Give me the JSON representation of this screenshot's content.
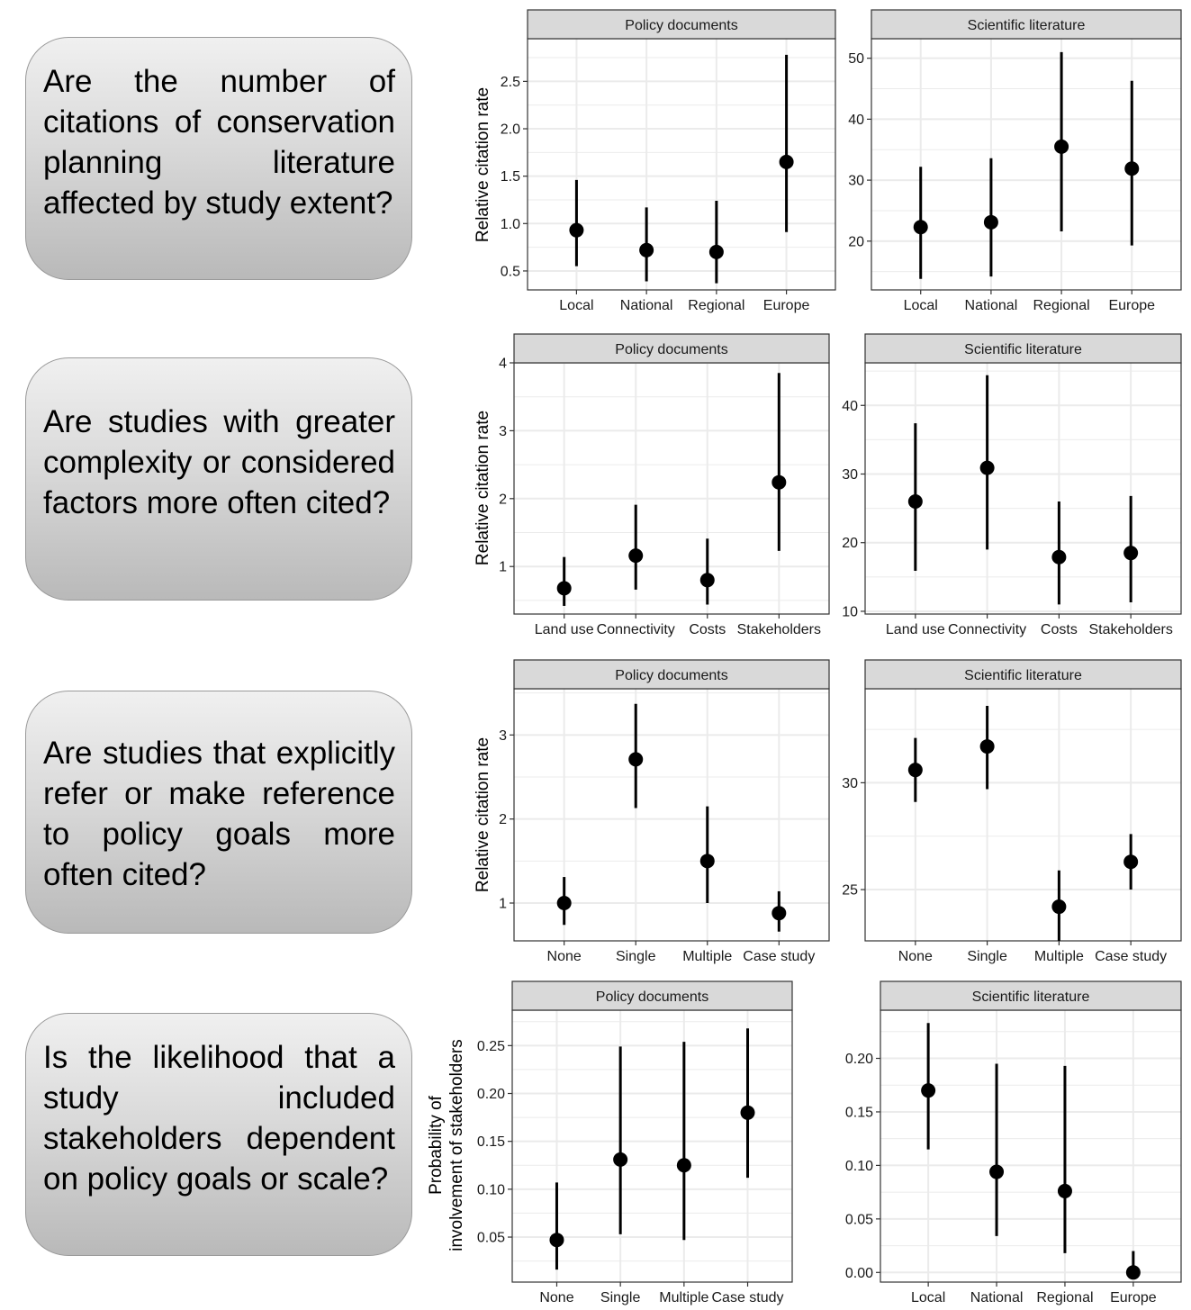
{
  "questions": [
    "Are the number of citations of conservation planning literature affected by study extent?",
    "Are studies with greater complexity or considered factors more often cited?",
    "Are studies that explicitly refer or make reference to policy goals more often cited?",
    "Is the likelihood that a study included stakeholders dependent on policy goals or scale?"
  ],
  "colors": {
    "point": "#000000",
    "grid": "#ebebeb",
    "strip": "#d9d9d9",
    "border": "#333333"
  },
  "chart_data": [
    {
      "type": "scatter",
      "error_bars": true,
      "title": "Policy documents",
      "ylabel": "Relative citation rate",
      "ylim": [
        0.3,
        2.95
      ],
      "yticks": [
        0.5,
        1.0,
        1.5,
        2.0,
        2.5
      ],
      "ytick_labels": [
        "0.5",
        "1.0",
        "1.5",
        "2.0",
        "2.5"
      ],
      "categories": [
        "Local",
        "National",
        "Regional",
        "Europe"
      ],
      "values": [
        0.93,
        0.72,
        0.7,
        1.65
      ],
      "lower": [
        0.55,
        0.39,
        0.37,
        0.91
      ],
      "upper": [
        1.46,
        1.17,
        1.24,
        2.78
      ]
    },
    {
      "type": "scatter",
      "error_bars": true,
      "title": "Scientific literature",
      "ylabel": "",
      "ylim": [
        12.0,
        53.2
      ],
      "yticks": [
        20,
        30,
        40,
        50
      ],
      "ytick_labels": [
        "20",
        "30",
        "40",
        "50"
      ],
      "categories": [
        "Local",
        "National",
        "Regional",
        "Europe"
      ],
      "values": [
        22.3,
        23.1,
        35.5,
        31.9
      ],
      "lower": [
        13.8,
        14.2,
        21.6,
        19.3
      ],
      "upper": [
        32.2,
        33.6,
        51.0,
        46.3
      ]
    },
    {
      "type": "scatter",
      "error_bars": true,
      "title": "Policy documents",
      "ylabel": "Relative citation rate",
      "ylim": [
        0.3,
        4.0
      ],
      "yticks": [
        1,
        2,
        3,
        4
      ],
      "ytick_labels": [
        "1",
        "2",
        "3",
        "4"
      ],
      "categories": [
        "Land use",
        "Connectivity",
        "Costs",
        "Stakeholders"
      ],
      "values": [
        0.68,
        1.16,
        0.8,
        2.24
      ],
      "lower": [
        0.42,
        0.66,
        0.44,
        1.23
      ],
      "upper": [
        1.14,
        1.91,
        1.41,
        3.85
      ]
    },
    {
      "type": "scatter",
      "error_bars": true,
      "title": "Scientific literature",
      "ylabel": "",
      "ylim": [
        9.6,
        46.2
      ],
      "yticks": [
        10,
        20,
        30,
        40
      ],
      "ytick_labels": [
        "10",
        "20",
        "30",
        "40"
      ],
      "categories": [
        "Land use",
        "Connectivity",
        "Costs",
        "Stakeholders"
      ],
      "values": [
        26.0,
        30.9,
        17.9,
        18.5
      ],
      "lower": [
        15.9,
        19.0,
        11.0,
        11.3
      ],
      "upper": [
        37.4,
        44.4,
        26.0,
        26.8
      ]
    },
    {
      "type": "scatter",
      "error_bars": true,
      "title": "Policy documents",
      "ylabel": "Relative citation rate",
      "ylim": [
        0.55,
        3.55
      ],
      "yticks": [
        1,
        2,
        3
      ],
      "ytick_labels": [
        "1",
        "2",
        "3"
      ],
      "categories": [
        "None",
        "Single",
        "Multiple",
        "Case study"
      ],
      "values": [
        1.0,
        2.71,
        1.5,
        0.88
      ],
      "lower": [
        0.74,
        2.13,
        1.0,
        0.66
      ],
      "upper": [
        1.31,
        3.37,
        2.15,
        1.14
      ]
    },
    {
      "type": "scatter",
      "error_bars": true,
      "title": "Scientific literature",
      "ylabel": "",
      "ylim": [
        22.6,
        34.4
      ],
      "yticks": [
        25,
        30
      ],
      "ytick_labels": [
        "25",
        "30"
      ],
      "categories": [
        "None",
        "Single",
        "Multiple",
        "Case study"
      ],
      "values": [
        30.6,
        31.7,
        24.2,
        26.3
      ],
      "lower": [
        29.1,
        29.7,
        22.6,
        25.0
      ],
      "upper": [
        32.1,
        33.6,
        25.9,
        27.6
      ]
    },
    {
      "type": "scatter",
      "error_bars": true,
      "title": "Policy documents",
      "ylabel": "Probability of involvement of stakeholders",
      "ylim": [
        0.003,
        0.287
      ],
      "yticks": [
        0.05,
        0.1,
        0.15,
        0.2,
        0.25
      ],
      "ytick_labels": [
        "0.05",
        "0.10",
        "0.15",
        "0.20",
        "0.25"
      ],
      "categories": [
        "None",
        "Single",
        "Multiple",
        "Case study"
      ],
      "values": [
        0.047,
        0.131,
        0.125,
        0.18
      ],
      "lower": [
        0.016,
        0.053,
        0.047,
        0.112
      ],
      "upper": [
        0.107,
        0.249,
        0.254,
        0.268
      ]
    },
    {
      "type": "scatter",
      "error_bars": true,
      "title": "Scientific literature",
      "ylabel": "",
      "ylim": [
        -0.009,
        0.245
      ],
      "yticks": [
        0.0,
        0.05,
        0.1,
        0.15,
        0.2
      ],
      "ytick_labels": [
        "0.00",
        "0.05",
        "0.10",
        "0.15",
        "0.20"
      ],
      "categories": [
        "Local",
        "National",
        "Regional",
        "Europe"
      ],
      "values": [
        0.17,
        0.094,
        0.076,
        0.0
      ],
      "lower": [
        0.115,
        0.034,
        0.018,
        0.0
      ],
      "upper": [
        0.233,
        0.195,
        0.193,
        0.02
      ]
    }
  ]
}
